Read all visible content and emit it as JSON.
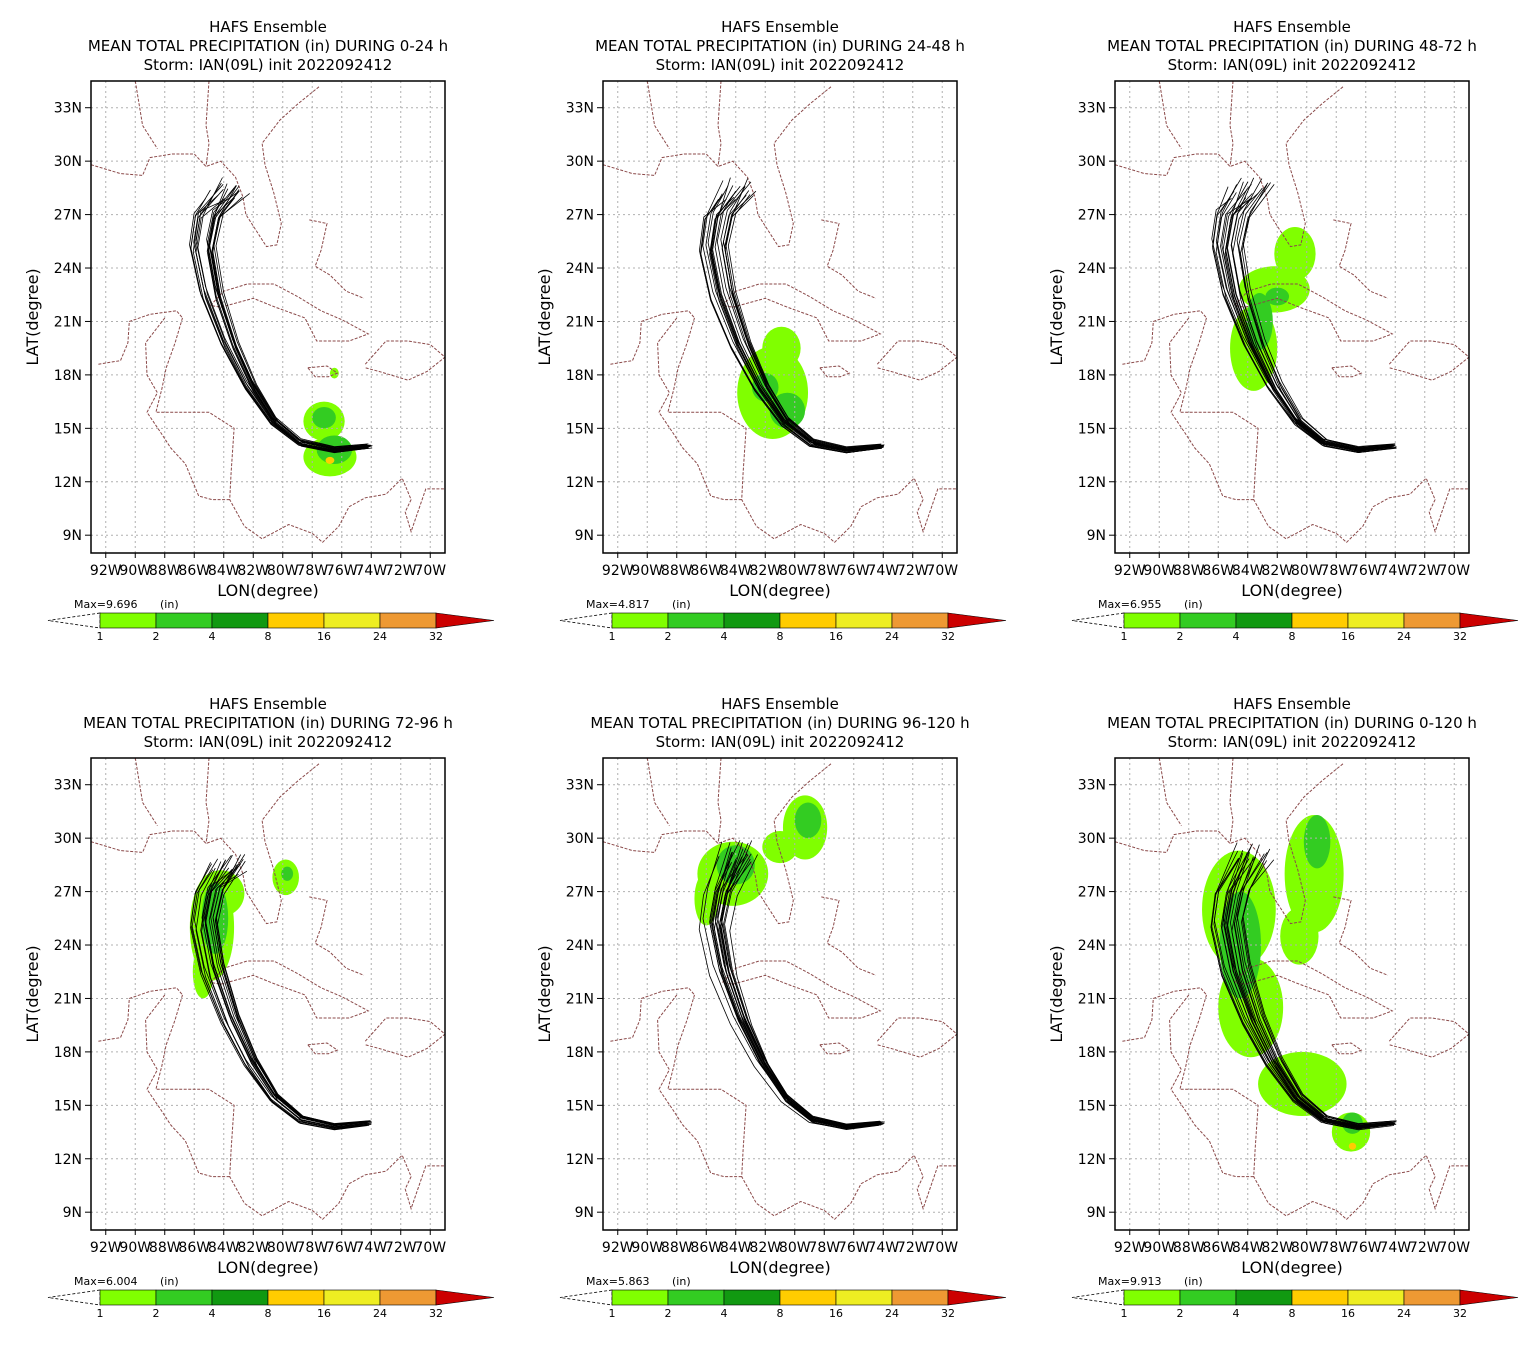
{
  "figure": {
    "xlabel": "LON(degree)",
    "ylabel": "LAT(degree)",
    "unit_label": "(in)",
    "x_ticks": [
      "92W",
      "90W",
      "88W",
      "86W",
      "84W",
      "82W",
      "80W",
      "78W",
      "76W",
      "74W",
      "72W",
      "70W"
    ],
    "y_ticks": [
      "33N",
      "30N",
      "27N",
      "24N",
      "21N",
      "18N",
      "15N",
      "12N",
      "9N"
    ],
    "colorbar": {
      "levels": [
        "1",
        "2",
        "4",
        "8",
        "16",
        "24",
        "32"
      ],
      "colors": [
        "#80ff00",
        "#33cc22",
        "#119911",
        "#ffcc00",
        "#eeee22",
        "#ee9933",
        "#cc0000"
      ]
    }
  },
  "chart_data": [
    {
      "type": "heatmap",
      "title_line1": "HAFS Ensemble",
      "title_line2": "MEAN TOTAL PRECIPITATION (in) DURING  0-24 h",
      "title_line3": "Storm: IAN(09L) init 2022092412",
      "max_label": "Max=9.696",
      "xlim": [
        -93,
        -69
      ],
      "ylim": [
        8,
        34.5
      ],
      "max": 9.696,
      "regions": [
        {
          "lon": -76.8,
          "lat": 13.4,
          "rlon": 1.8,
          "rlat": 1.1,
          "level": 1
        },
        {
          "lon": -77.2,
          "lat": 15.4,
          "rlon": 1.4,
          "rlat": 1.1,
          "level": 1
        },
        {
          "lon": -76.5,
          "lat": 13.8,
          "rlon": 1.2,
          "rlat": 0.8,
          "level": 2
        },
        {
          "lon": -77.2,
          "lat": 15.6,
          "rlon": 0.8,
          "rlat": 0.6,
          "level": 2
        },
        {
          "lon": -76.8,
          "lat": 13.2,
          "rlon": 0.3,
          "rlat": 0.2,
          "level": 4
        },
        {
          "lon": -76.5,
          "lat": 18.1,
          "rlon": 0.3,
          "rlat": 0.3,
          "level": 1
        }
      ]
    },
    {
      "type": "heatmap",
      "title_line1": "HAFS Ensemble",
      "title_line2": "MEAN TOTAL PRECIPITATION (in) DURING 24-48 h",
      "title_line3": "Storm: IAN(09L) init 2022092412",
      "max_label": "Max=4.817",
      "xlim": [
        -93,
        -69
      ],
      "ylim": [
        8,
        34.5
      ],
      "max": 4.817,
      "regions": [
        {
          "lon": -81.5,
          "lat": 17.0,
          "rlon": 2.4,
          "rlat": 2.6,
          "level": 1
        },
        {
          "lon": -80.9,
          "lat": 19.5,
          "rlon": 1.3,
          "rlat": 1.2,
          "level": 1
        },
        {
          "lon": -80.5,
          "lat": 16.0,
          "rlon": 1.2,
          "rlat": 1.0,
          "level": 2
        },
        {
          "lon": -82.0,
          "lat": 17.3,
          "rlon": 0.9,
          "rlat": 0.8,
          "level": 2
        }
      ]
    },
    {
      "type": "heatmap",
      "title_line1": "HAFS Ensemble",
      "title_line2": "MEAN TOTAL PRECIPITATION (in) DURING 48-72 h",
      "title_line3": "Storm: IAN(09L) init 2022092412",
      "max_label": "Max=6.955",
      "xlim": [
        -93,
        -69
      ],
      "ylim": [
        8,
        34.5
      ],
      "max": 6.955,
      "regions": [
        {
          "lon": -83.6,
          "lat": 19.5,
          "rlon": 1.6,
          "rlat": 2.4,
          "level": 1
        },
        {
          "lon": -82.2,
          "lat": 22.8,
          "rlon": 2.4,
          "rlat": 1.3,
          "level": 1
        },
        {
          "lon": -80.8,
          "lat": 24.8,
          "rlon": 1.4,
          "rlat": 1.5,
          "level": 1
        },
        {
          "lon": -83.2,
          "lat": 21.0,
          "rlon": 0.9,
          "rlat": 1.6,
          "level": 2
        },
        {
          "lon": -82.0,
          "lat": 22.4,
          "rlon": 0.8,
          "rlat": 0.5,
          "level": 2
        }
      ]
    },
    {
      "type": "heatmap",
      "title_line1": "HAFS Ensemble",
      "title_line2": "MEAN TOTAL PRECIPITATION (in) DURING 72-96 h",
      "title_line3": "Storm: IAN(09L) init 2022092412",
      "max_label": "Max=6.004",
      "xlim": [
        -93,
        -69
      ],
      "ylim": [
        8,
        34.5
      ],
      "max": 6.004,
      "regions": [
        {
          "lon": -84.8,
          "lat": 25.0,
          "rlon": 1.5,
          "rlat": 3.0,
          "level": 1
        },
        {
          "lon": -84.2,
          "lat": 26.9,
          "rlon": 1.6,
          "rlat": 1.3,
          "level": 1
        },
        {
          "lon": -85.4,
          "lat": 22.5,
          "rlon": 0.7,
          "rlat": 1.5,
          "level": 1
        },
        {
          "lon": -79.8,
          "lat": 27.8,
          "rlon": 0.9,
          "rlat": 1.0,
          "level": 1
        },
        {
          "lon": -84.6,
          "lat": 25.5,
          "rlon": 0.9,
          "rlat": 2.0,
          "level": 2
        },
        {
          "lon": -79.7,
          "lat": 28.0,
          "rlon": 0.4,
          "rlat": 0.4,
          "level": 2
        }
      ]
    },
    {
      "type": "heatmap",
      "title_line1": "HAFS Ensemble",
      "title_line2": "MEAN TOTAL PRECIPITATION (in) DURING 96-120 h",
      "title_line3": "Storm: IAN(09L) init 2022092412",
      "max_label": "Max=5.863",
      "xlim": [
        -93,
        -69
      ],
      "ylim": [
        8,
        34.5
      ],
      "max": 5.863,
      "regions": [
        {
          "lon": -84.2,
          "lat": 28.0,
          "rlon": 2.4,
          "rlat": 1.8,
          "level": 1
        },
        {
          "lon": -86.0,
          "lat": 26.6,
          "rlon": 0.8,
          "rlat": 1.5,
          "level": 1
        },
        {
          "lon": -79.3,
          "lat": 30.6,
          "rlon": 1.5,
          "rlat": 1.8,
          "level": 1
        },
        {
          "lon": -81.0,
          "lat": 29.5,
          "rlon": 1.2,
          "rlat": 0.9,
          "level": 1
        },
        {
          "lon": -84.0,
          "lat": 28.5,
          "rlon": 1.3,
          "rlat": 1.1,
          "level": 2
        },
        {
          "lon": -79.1,
          "lat": 31.0,
          "rlon": 0.9,
          "rlat": 1.0,
          "level": 2
        }
      ]
    },
    {
      "type": "heatmap",
      "title_line1": "HAFS Ensemble",
      "title_line2": "MEAN TOTAL PRECIPITATION (in) DURING 0-120 h",
      "title_line3": "Storm: IAN(09L) init 2022092412",
      "max_label": "Max=9.913",
      "xlim": [
        -93,
        -69
      ],
      "ylim": [
        8,
        34.5
      ],
      "max": 9.913,
      "regions": [
        {
          "lon": -84.6,
          "lat": 26.0,
          "rlon": 2.5,
          "rlat": 3.3,
          "level": 1
        },
        {
          "lon": -83.8,
          "lat": 20.5,
          "rlon": 2.2,
          "rlat": 2.8,
          "level": 1
        },
        {
          "lon": -80.3,
          "lat": 16.2,
          "rlon": 3.0,
          "rlat": 1.8,
          "level": 1
        },
        {
          "lon": -79.5,
          "lat": 28.0,
          "rlon": 2.0,
          "rlat": 3.3,
          "level": 1
        },
        {
          "lon": -80.5,
          "lat": 24.5,
          "rlon": 1.3,
          "rlat": 1.6,
          "level": 1
        },
        {
          "lon": -77.0,
          "lat": 13.5,
          "rlon": 1.3,
          "rlat": 1.1,
          "level": 1
        },
        {
          "lon": -84.5,
          "lat": 24.0,
          "rlon": 1.4,
          "rlat": 3.0,
          "level": 2
        },
        {
          "lon": -79.3,
          "lat": 29.8,
          "rlon": 0.9,
          "rlat": 1.5,
          "level": 2
        },
        {
          "lon": -76.9,
          "lat": 14.0,
          "rlon": 0.7,
          "rlat": 0.6,
          "level": 2
        },
        {
          "lon": -76.9,
          "lat": 12.7,
          "rlon": 0.25,
          "rlat": 0.2,
          "level": 4
        }
      ]
    }
  ]
}
